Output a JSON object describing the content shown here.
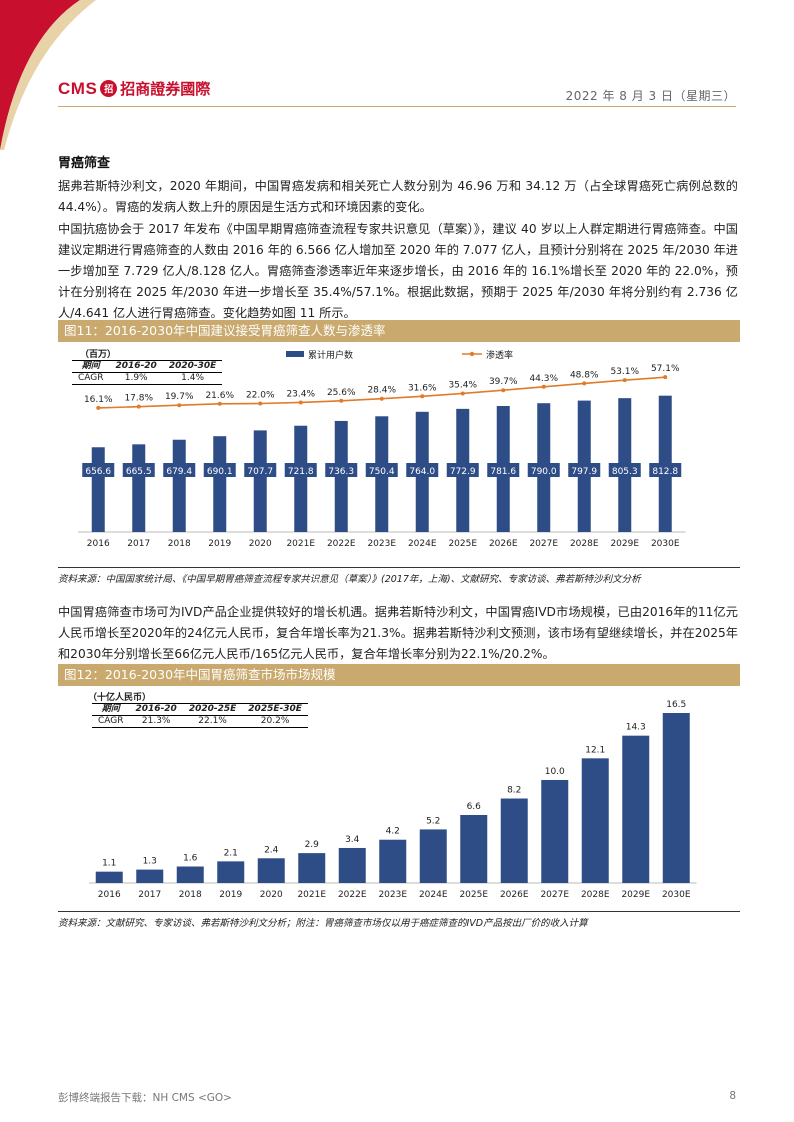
{
  "header": {
    "logo_en": "CMS",
    "logo_mark": "招",
    "logo_cn": "招商證券國際",
    "date": "2022 年 8 月 3 日（星期三）"
  },
  "section": {
    "title": "胃癌筛查",
    "p1": "据弗若斯特沙利文，2020 年期间，中国胃癌发病和相关死亡人数分别为 46.96 万和 34.12 万（占全球胃癌死亡病例总数的 44.4%）。胃癌的发病人数上升的原因是生活方式和环境因素的变化。",
    "p2": "中国抗癌协会于 2017 年发布《中国早期胃癌筛查流程专家共识意见（草案）》，建议 40 岁以上人群定期进行胃癌筛查。中国建议定期进行胃癌筛查的人数由 2016 年的 6.566 亿人增加至 2020 年的 7.077 亿人，且预计分别将在 2025 年/2030 年进一步增加至 7.729 亿人/8.128 亿人。胃癌筛查渗透率近年来逐步增长，由 2016 年的 16.1%增长至 2020 年的 22.0%，预计在分别将在 2025 年/2030 年进一步增长至 35.4%/57.1%。根据此数据，预期于 2025 年/2030 年将分别约有 2.736 亿人/4.641 亿人进行胃癌筛查。变化趋势如图 11 所示。",
    "p3": "中国胃癌筛查市场可为IVD产品企业提供较好的增长机遇。据弗若斯特沙利文，中国胃癌IVD市场规模，已由2016年的11亿元人民币增长至2020年的24亿元人民币，复合年增长率为21.3%。据弗若斯特沙利文预测，该市场有望继续增长，并在2025年和2030年分别增长至66亿元人民币/165亿元人民币，复合年增长率分别为22.1%/20.2%。"
  },
  "figure11": {
    "caption": "图11：2016-2030年中国建议接受胃癌筛查人数与渗透率",
    "unit": "（百万）",
    "cagr_table": {
      "headers": [
        "期间",
        "2016-20",
        "2020-30E"
      ],
      "row_label": "CAGR",
      "row_values": [
        "1.9%",
        "1.4%"
      ]
    },
    "source": "资料来源：中国国家统计局、《中国早期胃癌筛查流程专家共识意见（草案）》(2017年，上海)、文献研究、专家访谈、弗若斯特沙利文分析"
  },
  "figure12": {
    "caption": "图12：2016-2030年中国胃癌筛查市场市场规模",
    "unit": "（十亿人民币）",
    "cagr_table": {
      "headers": [
        "期间",
        "2016-20",
        "2020-25E",
        "2025E-30E"
      ],
      "row_label": "CAGR",
      "row_values": [
        "21.3%",
        "22.1%",
        "20.2%"
      ]
    },
    "source": "资料来源：文献研究、专家访谈、弗若斯特沙利文分析；附注：胃癌筛查市场仅以用于癌症筛查的IVD产品按出厂价的收入计算"
  },
  "chart_data": [
    {
      "type": "bar",
      "categories": [
        "2016",
        "2017",
        "2018",
        "2019",
        "2020",
        "2021E",
        "2022E",
        "2023E",
        "2024E",
        "2025E",
        "2026E",
        "2027E",
        "2028E",
        "2029E",
        "2030E"
      ],
      "series": [
        {
          "name": "累计用户数",
          "values": [
            656.6,
            665.5,
            679.4,
            690.1,
            707.7,
            721.8,
            736.3,
            750.4,
            764.0,
            772.9,
            781.6,
            790.0,
            797.9,
            805.3,
            812.8
          ]
        },
        {
          "name": "渗透率",
          "type": "line",
          "values": [
            16.1,
            17.8,
            19.7,
            21.6,
            22.0,
            23.4,
            25.6,
            28.4,
            31.6,
            35.4,
            39.7,
            44.3,
            48.8,
            53.1,
            57.1
          ],
          "labels": [
            "16.1%",
            "17.8%",
            "19.7%",
            "21.6%",
            "22.0%",
            "23.4%",
            "25.6%",
            "28.4%",
            "31.6%",
            "35.4%",
            "39.7%",
            "44.3%",
            "48.8%",
            "53.1%",
            "57.1%"
          ]
        }
      ],
      "legend_position": "top",
      "colors": {
        "bar": "#2e4d86",
        "line": "#e07b2a"
      }
    },
    {
      "type": "bar",
      "categories": [
        "2016",
        "2017",
        "2018",
        "2019",
        "2020",
        "2021E",
        "2022E",
        "2023E",
        "2024E",
        "2025E",
        "2026E",
        "2027E",
        "2028E",
        "2029E",
        "2030E"
      ],
      "values": [
        1.1,
        1.3,
        1.6,
        2.1,
        2.4,
        2.9,
        3.4,
        4.2,
        5.2,
        6.6,
        8.2,
        10.0,
        12.1,
        14.3,
        16.5
      ],
      "labels": [
        "1.1",
        "1.3",
        "1.6",
        "2.1",
        "2.4",
        "2.9",
        "3.4",
        "4.2",
        "5.2",
        "6.6",
        "8.2",
        "10.0",
        "12.1",
        "14.3",
        "16.5"
      ],
      "colors": {
        "bar": "#2e4d86"
      }
    }
  ],
  "footer": {
    "left": "彭博终端报告下载：NH CMS <GO>",
    "page": "8"
  }
}
